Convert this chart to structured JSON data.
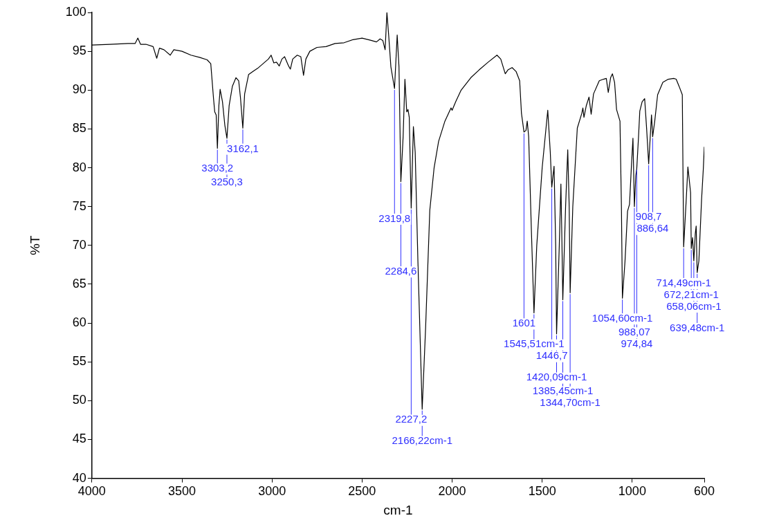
{
  "chart_data": {
    "type": "line",
    "xlabel": "cm-1",
    "ylabel": "%T",
    "xlim": [
      4000,
      600
    ],
    "xticks": [
      4000,
      3500,
      3000,
      2500,
      2000,
      1500,
      1000,
      600
    ],
    "ylim": [
      40,
      100
    ],
    "yticks": [
      40,
      45,
      50,
      55,
      60,
      65,
      70,
      75,
      80,
      85,
      90,
      95,
      100
    ],
    "grid": false,
    "legend": false,
    "marker": "none",
    "line_style": "solid",
    "series": [
      {
        "color": "#000000",
        "x": [
          4000,
          3900,
          3800,
          3760,
          3745,
          3730,
          3700,
          3660,
          3640,
          3625,
          3600,
          3565,
          3545,
          3500,
          3450,
          3400,
          3360,
          3340,
          3325,
          3318,
          3310,
          3303.2,
          3295,
          3288,
          3275,
          3262,
          3250.3,
          3238,
          3220,
          3200,
          3185,
          3175,
          3162.1,
          3152,
          3130,
          3100,
          3080,
          3050,
          3020,
          3005,
          2990,
          2975,
          2960,
          2945,
          2930,
          2910,
          2898,
          2885,
          2860,
          2840,
          2825,
          2812,
          2790,
          2750,
          2700,
          2650,
          2600,
          2550,
          2500,
          2450,
          2420,
          2400,
          2385,
          2372,
          2362,
          2352,
          2340,
          2319.8,
          2305,
          2295,
          2284.6,
          2272,
          2262,
          2252,
          2245,
          2238,
          2227.2,
          2215,
          2205,
          2190,
          2166.22,
          2147,
          2124,
          2100,
          2075,
          2040,
          2006,
          2000,
          1980,
          1950,
          1896,
          1850,
          1800,
          1751,
          1730,
          1705,
          1690,
          1667,
          1645,
          1625,
          1615,
          1601,
          1590,
          1583,
          1575,
          1560,
          1545.51,
          1530,
          1500,
          1469,
          1455,
          1446.7,
          1434,
          1425,
          1420.09,
          1405,
          1396,
          1390,
          1385.45,
          1370,
          1358,
          1350,
          1344.7,
          1330,
          1305,
          1280,
          1274,
          1268,
          1255,
          1240,
          1228,
          1215,
          1183,
          1160,
          1144,
          1133,
          1120,
          1110,
          1098,
          1087,
          1068,
          1060,
          1054.6,
          1040,
          1026,
          1015,
          1005,
          996,
          988.07,
          980,
          974.84,
          965,
          958,
          945,
          931,
          920,
          908.7,
          900,
          893,
          886.64,
          875,
          859,
          830,
          800,
          770,
          756,
          740,
          722,
          714.49,
          700,
          691,
          676,
          672.21,
          665,
          658.06,
          650,
          645,
          639.48,
          630,
          615,
          605,
          600
        ],
        "values": [
          95.8,
          95.9,
          96.0,
          96.0,
          96.7,
          95.9,
          95.9,
          95.6,
          94.1,
          95.4,
          95.2,
          94.5,
          95.2,
          95.0,
          94.5,
          94.2,
          93.9,
          93.4,
          89.0,
          87.2,
          86.8,
          82.5,
          88,
          90.1,
          88.5,
          85.5,
          83.8,
          88.0,
          90.5,
          91.6,
          91.2,
          89.0,
          85.1,
          89.5,
          92.0,
          92.5,
          92.8,
          93.4,
          94.0,
          94.5,
          93.5,
          93.6,
          93.1,
          94.0,
          94.3,
          93.2,
          92.7,
          94.0,
          94.5,
          94.3,
          91.9,
          94.0,
          95.0,
          95.5,
          95.6,
          96.0,
          96.1,
          96.5,
          96.7,
          96.4,
          96.2,
          96.6,
          96.4,
          95.2,
          100,
          97.0,
          93.0,
          90.2,
          97.1,
          93,
          78.2,
          84,
          91.4,
          87.2,
          87.5,
          86.5,
          74.8,
          85.3,
          82,
          68,
          48.9,
          59.5,
          74.5,
          80,
          83.4,
          86.0,
          87.7,
          87.4,
          88.5,
          90.0,
          91.6,
          92.6,
          93.6,
          94.5,
          94.0,
          92.1,
          92.6,
          92.9,
          92.4,
          91.2,
          87.0,
          84.6,
          84.8,
          86.0,
          84.0,
          72,
          61.3,
          70,
          80,
          87.4,
          82,
          77.5,
          80.2,
          70,
          58.6,
          70,
          77.9,
          70,
          63.0,
          75,
          82.3,
          75,
          63.9,
          75,
          85.1,
          87.0,
          87.7,
          86.5,
          88.0,
          89.1,
          86.9,
          89.5,
          91.2,
          91.4,
          91.5,
          89.7,
          91.6,
          92.1,
          91.0,
          87.5,
          86.0,
          75,
          63.2,
          68,
          74.4,
          75.3,
          80,
          83.8,
          75.0,
          79,
          79.9,
          84,
          87.3,
          88.5,
          88.9,
          85,
          80.5,
          84,
          86.8,
          84.0,
          86,
          89.4,
          91.0,
          91.4,
          91.5,
          91.4,
          90.5,
          89.4,
          69.8,
          76,
          80.1,
          76.8,
          69.6,
          71,
          68.0,
          71.5,
          72.5,
          66.5,
          68,
          75.9,
          80,
          82.7
        ]
      }
    ],
    "annotations": [
      {
        "text": "3303,2",
        "x": 3303.2,
        "y": 82.5
      },
      {
        "text": "3250,3",
        "x": 3250.3,
        "y": 83.8
      },
      {
        "text": "3162,1",
        "x": 3162.1,
        "y": 85.1
      },
      {
        "text": "2319,8",
        "x": 2319.8,
        "y": 90.2
      },
      {
        "text": "2284,6",
        "x": 2284.6,
        "y": 78.2
      },
      {
        "text": "2227,2",
        "x": 2227.2,
        "y": 74.8
      },
      {
        "text": "2166,22cm-1",
        "x": 2166.22,
        "y": 48.9
      },
      {
        "text": "1601",
        "x": 1601,
        "y": 84.6
      },
      {
        "text": "1545,51cm-1",
        "x": 1545.51,
        "y": 61.3
      },
      {
        "text": "1446,7",
        "x": 1446.7,
        "y": 77.5
      },
      {
        "text": "1420,09cm-1",
        "x": 1420.09,
        "y": 58.6
      },
      {
        "text": "1385,45cm-1",
        "x": 1385.45,
        "y": 63.0
      },
      {
        "text": "1344,70cm-1",
        "x": 1344.7,
        "y": 63.9
      },
      {
        "text": "1054,60cm-1",
        "x": 1054.6,
        "y": 63.2
      },
      {
        "text": "988,07",
        "x": 988.07,
        "y": 75.0
      },
      {
        "text": "974,84",
        "x": 974.84,
        "y": 79.9
      },
      {
        "text": "908,7",
        "x": 908.7,
        "y": 80.5
      },
      {
        "text": "886,64",
        "x": 886.64,
        "y": 84.0
      },
      {
        "text": "714,49cm-1",
        "x": 714.49,
        "y": 69.8
      },
      {
        "text": "672,21cm-1",
        "x": 672.21,
        "y": 69.6
      },
      {
        "text": "658,06cm-1",
        "x": 658.06,
        "y": 68.0
      },
      {
        "text": "639,48cm-1",
        "x": 639.48,
        "y": 66.5
      }
    ]
  }
}
